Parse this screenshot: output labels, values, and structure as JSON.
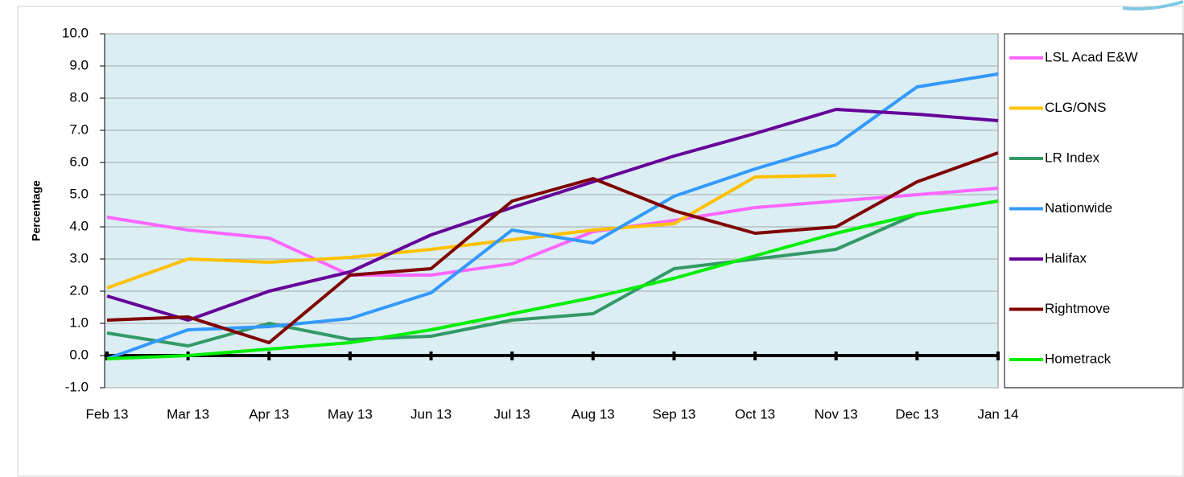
{
  "chart_data": {
    "type": "line",
    "y_label": "Percentage",
    "categories": [
      "Feb 13",
      "Mar 13",
      "Apr 13",
      "May 13",
      "Jun 13",
      "Jul 13",
      "Aug 13",
      "Sep 13",
      "Oct 13",
      "Nov 13",
      "Dec 13",
      "Jan 14"
    ],
    "ylim": [
      -1,
      10
    ],
    "yticks": [
      {
        "value": -1,
        "label": "-1.0"
      },
      {
        "value": 0,
        "label": "0.0"
      },
      {
        "value": 1,
        "label": "1.0"
      },
      {
        "value": 2,
        "label": "2.0"
      },
      {
        "value": 3,
        "label": "3.0"
      },
      {
        "value": 4,
        "label": "4.0"
      },
      {
        "value": 5,
        "label": "5.0"
      },
      {
        "value": 6,
        "label": "6.0"
      },
      {
        "value": 7,
        "label": "7.0"
      },
      {
        "value": 8,
        "label": "8.0"
      },
      {
        "value": 9,
        "label": "9.0"
      },
      {
        "value": 10,
        "label": "10.0"
      }
    ],
    "grid": true,
    "legend": "right",
    "series": [
      {
        "name": "LSL Acad E&W",
        "color": "#ff66ff",
        "values": [
          4.3,
          3.9,
          3.65,
          2.5,
          2.5,
          2.85,
          3.85,
          4.2,
          4.6,
          4.8,
          5.0,
          5.2
        ]
      },
      {
        "name": "CLG/ONS",
        "color": "#ffc000",
        "values": [
          2.1,
          3.0,
          2.9,
          3.05,
          3.3,
          3.6,
          3.9,
          4.1,
          5.55,
          5.6,
          null,
          null
        ]
      },
      {
        "name": "LR Index",
        "color": "#339966",
        "values": [
          0.7,
          0.3,
          1.0,
          0.5,
          0.6,
          1.1,
          1.3,
          2.7,
          3.0,
          3.3,
          4.4,
          null
        ]
      },
      {
        "name": "Nationwide",
        "color": "#3399ff",
        "values": [
          -0.1,
          0.8,
          0.9,
          1.15,
          1.95,
          3.9,
          3.5,
          4.95,
          5.8,
          6.55,
          8.35,
          8.75
        ]
      },
      {
        "name": "Halifax",
        "color": "#660099",
        "values": [
          1.85,
          1.1,
          2.0,
          2.6,
          3.75,
          4.6,
          5.4,
          6.2,
          6.9,
          7.65,
          7.5,
          7.3
        ]
      },
      {
        "name": "Rightmove",
        "color": "#800000",
        "values": [
          1.1,
          1.2,
          0.4,
          2.5,
          2.7,
          4.8,
          5.5,
          4.5,
          3.8,
          4.0,
          5.4,
          6.3
        ]
      },
      {
        "name": "Hometrack",
        "color": "#00ee00",
        "values": [
          -0.1,
          0.0,
          0.2,
          0.4,
          0.8,
          1.3,
          1.8,
          2.4,
          3.1,
          3.8,
          4.4,
          4.8
        ]
      }
    ]
  }
}
